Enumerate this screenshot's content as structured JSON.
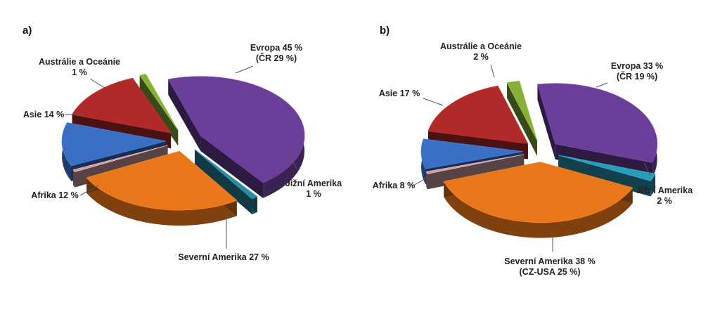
{
  "chart_data": [
    {
      "type": "pie",
      "panel_label": "a)",
      "title": "",
      "slices": [
        {
          "label": "Evropa 45 %",
          "sublabel": "(ČR 29 %)",
          "value": 45,
          "color": "#6a3f9a"
        },
        {
          "label": "Jižní Amerika",
          "sublabel": "1 %",
          "value": 1,
          "color": "#2a8ba3"
        },
        {
          "label": "Severní Amerika 27 %",
          "sublabel": "",
          "value": 27,
          "color": "#e8761a"
        },
        {
          "label": "",
          "sublabel": "",
          "value": 0.6,
          "color": "#caa0a6"
        },
        {
          "label": "Afrika 12 %",
          "sublabel": "",
          "value": 12,
          "color": "#3b6fc4"
        },
        {
          "label": "Asie 14 %",
          "sublabel": "",
          "value": 14,
          "color": "#b02a2a"
        },
        {
          "label": "Austrálie a Oceánie",
          "sublabel": "1 %",
          "value": 1,
          "color": "#86b03a"
        }
      ]
    },
    {
      "type": "pie",
      "panel_label": "b)",
      "title": "",
      "slices": [
        {
          "label": "Evropa 33 %",
          "sublabel": "(ČR 19 %)",
          "value": 33,
          "color": "#6a3f9a"
        },
        {
          "label": "Jižní Amerika",
          "sublabel": "2 %",
          "value": 2,
          "color": "#2a9bb8"
        },
        {
          "label": "Severní Amerika 38 %",
          "sublabel": "(CZ-USA 25 %)",
          "value": 38,
          "color": "#e8761a"
        },
        {
          "label": "",
          "sublabel": "",
          "value": 0.6,
          "color": "#caa0a6"
        },
        {
          "label": "Afrika 8 %",
          "sublabel": "",
          "value": 8,
          "color": "#3b6fc4"
        },
        {
          "label": "Asie 17 %",
          "sublabel": "",
          "value": 17,
          "color": "#b02a2a"
        },
        {
          "label": "Austrálie a Oceánie",
          "sublabel": "2 %",
          "value": 2,
          "color": "#86b03a"
        }
      ]
    }
  ]
}
